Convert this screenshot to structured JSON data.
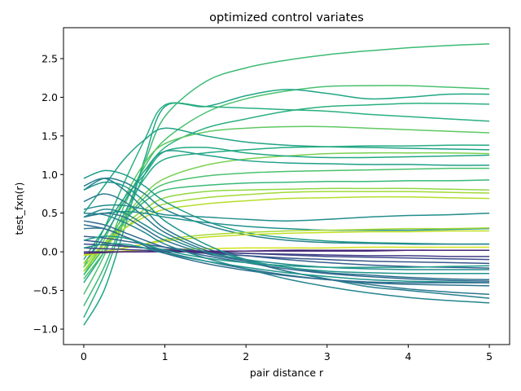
{
  "chart_data": {
    "type": "line",
    "title": "optimized control variates",
    "xlabel": "pair distance r",
    "ylabel": "test_fxn(r)",
    "xlim": [
      -0.25,
      5.25
    ],
    "ylim": [
      -1.2,
      2.9
    ],
    "xticks": [
      0,
      1,
      2,
      3,
      4,
      5
    ],
    "yticks": [
      -1.0,
      -0.5,
      0.0,
      0.5,
      1.0,
      1.5,
      2.0,
      2.5
    ],
    "xtick_labels": [
      "0",
      "1",
      "2",
      "3",
      "4",
      "5"
    ],
    "ytick_labels": [
      "−1.0",
      "−0.5",
      "0.0",
      "0.5",
      "1.0",
      "1.5",
      "2.0",
      "2.5"
    ],
    "grid": false,
    "legend": "none",
    "colormap": "viridis",
    "x": [
      0,
      0.25,
      0.5,
      0.75,
      1,
      1.5,
      2,
      2.5,
      3,
      3.5,
      4,
      4.5,
      5
    ],
    "series": [
      {
        "color": "#3bbb75",
        "values": [
          -0.7,
          -0.2,
          0.45,
          1.15,
          1.75,
          2.2,
          2.38,
          2.48,
          2.55,
          2.6,
          2.64,
          2.67,
          2.69
        ]
      },
      {
        "color": "#48c16e",
        "values": [
          -0.55,
          -0.05,
          0.6,
          1.1,
          1.45,
          1.8,
          1.98,
          2.08,
          2.14,
          2.15,
          2.15,
          2.13,
          2.11
        ]
      },
      {
        "color": "#21a685",
        "values": [
          -0.95,
          -0.5,
          0.3,
          1.2,
          1.88,
          1.88,
          2.02,
          2.1,
          2.05,
          1.98,
          2.0,
          2.04,
          2.04
        ]
      },
      {
        "color": "#2ab07f",
        "values": [
          -0.85,
          -0.3,
          0.4,
          1.0,
          1.35,
          1.6,
          1.72,
          1.82,
          1.88,
          1.9,
          1.92,
          1.92,
          1.91
        ]
      },
      {
        "color": "#29af7f",
        "values": [
          -0.2,
          0.3,
          0.9,
          1.45,
          1.9,
          1.88,
          1.86,
          1.84,
          1.82,
          1.78,
          1.75,
          1.72,
          1.69
        ]
      },
      {
        "color": "#5ec962",
        "values": [
          -0.3,
          0.15,
          0.7,
          1.15,
          1.4,
          1.55,
          1.6,
          1.62,
          1.62,
          1.6,
          1.58,
          1.56,
          1.54
        ]
      },
      {
        "color": "#20a386",
        "values": [
          0.5,
          0.85,
          1.2,
          1.45,
          1.6,
          1.5,
          1.42,
          1.38,
          1.36,
          1.35,
          1.34,
          1.33,
          1.32
        ]
      },
      {
        "color": "#25ab82",
        "values": [
          -0.4,
          0.0,
          0.5,
          0.95,
          1.2,
          1.28,
          1.32,
          1.35,
          1.36,
          1.37,
          1.37,
          1.38,
          1.38
        ]
      },
      {
        "color": "#7ad151",
        "values": [
          -0.25,
          0.1,
          0.45,
          0.75,
          0.95,
          1.12,
          1.2,
          1.24,
          1.27,
          1.28,
          1.28,
          1.28,
          1.27
        ]
      },
      {
        "color": "#22a884",
        "values": [
          -0.1,
          0.3,
          0.7,
          1.0,
          1.3,
          1.35,
          1.28,
          1.24,
          1.22,
          1.22,
          1.23,
          1.24,
          1.25
        ]
      },
      {
        "color": "#1f9e89",
        "values": [
          -0.15,
          0.2,
          0.65,
          1.05,
          1.3,
          1.25,
          1.18,
          1.15,
          1.14,
          1.13,
          1.13,
          1.12,
          1.12
        ]
      },
      {
        "color": "#4ac16d",
        "values": [
          -0.35,
          0.0,
          0.4,
          0.7,
          0.88,
          0.98,
          1.02,
          1.04,
          1.05,
          1.06,
          1.07,
          1.08,
          1.08
        ]
      },
      {
        "color": "#38b977",
        "values": [
          -0.3,
          0.05,
          0.4,
          0.65,
          0.8,
          0.86,
          0.89,
          0.9,
          0.91,
          0.91,
          0.92,
          0.92,
          0.93
        ]
      },
      {
        "color": "#8fd744",
        "values": [
          -0.2,
          0.1,
          0.35,
          0.55,
          0.7,
          0.78,
          0.8,
          0.81,
          0.82,
          0.82,
          0.82,
          0.81,
          0.8
        ]
      },
      {
        "color": "#a2da37",
        "values": [
          -0.25,
          0.05,
          0.3,
          0.5,
          0.62,
          0.7,
          0.74,
          0.77,
          0.78,
          0.78,
          0.78,
          0.77,
          0.76
        ]
      },
      {
        "color": "#b5de2b",
        "values": [
          -0.15,
          0.1,
          0.3,
          0.45,
          0.55,
          0.62,
          0.66,
          0.69,
          0.7,
          0.71,
          0.71,
          0.7,
          0.69
        ]
      },
      {
        "color": "#1e9c89",
        "values": [
          0.95,
          1.05,
          1.0,
          0.85,
          0.65,
          0.4,
          0.25,
          0.18,
          0.14,
          0.12,
          0.11,
          0.1,
          0.1
        ]
      },
      {
        "color": "#26828e",
        "values": [
          0.8,
          0.95,
          0.9,
          0.75,
          0.55,
          0.35,
          0.22,
          0.15,
          0.12,
          0.11,
          0.1,
          0.1,
          0.1
        ]
      },
      {
        "color": "#228d8d",
        "values": [
          0.55,
          0.6,
          0.6,
          0.55,
          0.48,
          0.45,
          0.42,
          0.4,
          0.42,
          0.45,
          0.47,
          0.48,
          0.5
        ]
      },
      {
        "color": "#21918c",
        "values": [
          0.45,
          0.5,
          0.52,
          0.5,
          0.45,
          0.38,
          0.33,
          0.3,
          0.28,
          0.28,
          0.28,
          0.29,
          0.3
        ]
      },
      {
        "color": "#a8db34",
        "values": [
          -0.05,
          0.0,
          0.05,
          0.1,
          0.16,
          0.22,
          0.25,
          0.27,
          0.28,
          0.29,
          0.3,
          0.3,
          0.31
        ]
      },
      {
        "color": "#c2df23",
        "values": [
          -0.05,
          0.0,
          0.05,
          0.1,
          0.14,
          0.19,
          0.22,
          0.24,
          0.25,
          0.26,
          0.26,
          0.27,
          0.27
        ]
      },
      {
        "color": "#d2e21b",
        "values": [
          -0.03,
          -0.01,
          0.01,
          0.02,
          0.03,
          0.04,
          0.05,
          0.05,
          0.05,
          0.06,
          0.06,
          0.06,
          0.06
        ]
      },
      {
        "color": "#277f8e",
        "values": [
          0.85,
          0.95,
          0.8,
          0.55,
          0.3,
          0.05,
          -0.1,
          -0.25,
          -0.35,
          -0.45,
          -0.5,
          -0.55,
          -0.6
        ]
      },
      {
        "color": "#2a788e",
        "values": [
          0.65,
          0.75,
          0.65,
          0.45,
          0.25,
          0.02,
          -0.12,
          -0.25,
          -0.35,
          -0.42,
          -0.48,
          -0.52,
          -0.55
        ]
      },
      {
        "color": "#2c728e",
        "values": [
          0.45,
          0.5,
          0.45,
          0.3,
          0.15,
          -0.02,
          -0.12,
          -0.2,
          -0.27,
          -0.3,
          -0.33,
          -0.35,
          -0.36
        ]
      },
      {
        "color": "#31688e",
        "values": [
          0.4,
          0.35,
          0.25,
          0.15,
          0.06,
          -0.05,
          -0.14,
          -0.22,
          -0.28,
          -0.32,
          -0.35,
          -0.37,
          -0.38
        ]
      },
      {
        "color": "#355f8d",
        "values": [
          0.2,
          0.18,
          0.14,
          0.1,
          0.06,
          0.0,
          -0.05,
          -0.1,
          -0.14,
          -0.17,
          -0.19,
          -0.2,
          -0.21
        ]
      },
      {
        "color": "#39568c",
        "values": [
          0.15,
          0.12,
          0.08,
          0.05,
          0.02,
          -0.02,
          -0.05,
          -0.08,
          -0.1,
          -0.12,
          -0.13,
          -0.14,
          -0.15
        ]
      },
      {
        "color": "#3e4989",
        "values": [
          0.1,
          0.09,
          0.07,
          0.05,
          0.03,
          0.0,
          -0.02,
          -0.04,
          -0.06,
          -0.07,
          -0.08,
          -0.09,
          -0.1
        ]
      },
      {
        "color": "#433e85",
        "values": [
          0.05,
          0.04,
          0.03,
          0.02,
          0.01,
          -0.01,
          -0.02,
          -0.03,
          -0.04,
          -0.05,
          -0.05,
          -0.06,
          -0.06
        ]
      },
      {
        "color": "#472f7d",
        "values": [
          0.0,
          0.0,
          0.0,
          0.0,
          0.0,
          0.0,
          0.01,
          0.01,
          0.01,
          0.01,
          0.02,
          0.02,
          0.02
        ]
      },
      {
        "color": "#482475",
        "values": [
          -0.02,
          -0.01,
          0.0,
          0.0,
          0.01,
          0.01,
          0.01,
          0.02,
          0.02,
          0.02,
          0.02,
          0.02,
          0.02
        ]
      },
      {
        "color": "#2d708e",
        "values": [
          0.3,
          0.3,
          0.2,
          0.1,
          0.0,
          -0.12,
          -0.22,
          -0.3,
          -0.36,
          -0.4,
          -0.42,
          -0.43,
          -0.44
        ]
      },
      {
        "color": "#1f968b",
        "values": [
          0.05,
          0.1,
          0.1,
          0.05,
          -0.02,
          -0.12,
          -0.2,
          -0.27,
          -0.32,
          -0.36,
          -0.38,
          -0.39,
          -0.4
        ]
      },
      {
        "color": "#2f6c8e",
        "values": [
          0.35,
          0.3,
          0.2,
          0.08,
          -0.02,
          -0.15,
          -0.24,
          -0.31,
          -0.36,
          -0.39,
          -0.4,
          -0.4,
          -0.4
        ]
      },
      {
        "color": "#1f948c",
        "values": [
          0.8,
          0.9,
          0.85,
          0.65,
          0.4,
          0.1,
          -0.1,
          -0.2,
          -0.25,
          -0.27,
          -0.28,
          -0.28,
          -0.28
        ]
      },
      {
        "color": "#238a8d",
        "values": [
          0.45,
          0.55,
          0.5,
          0.35,
          0.2,
          0.0,
          -0.1,
          -0.16,
          -0.2,
          -0.22,
          -0.23,
          -0.23,
          -0.23
        ]
      },
      {
        "color": "#1e9b8a",
        "values": [
          0.15,
          0.2,
          0.18,
          0.1,
          0.02,
          -0.08,
          -0.14,
          -0.18,
          -0.2,
          -0.2,
          -0.2,
          -0.19,
          -0.18
        ]
      },
      {
        "color": "#25848e",
        "values": [
          0.5,
          0.48,
          0.38,
          0.25,
          0.1,
          -0.08,
          -0.22,
          -0.35,
          -0.45,
          -0.53,
          -0.59,
          -0.63,
          -0.66
        ]
      }
    ]
  }
}
